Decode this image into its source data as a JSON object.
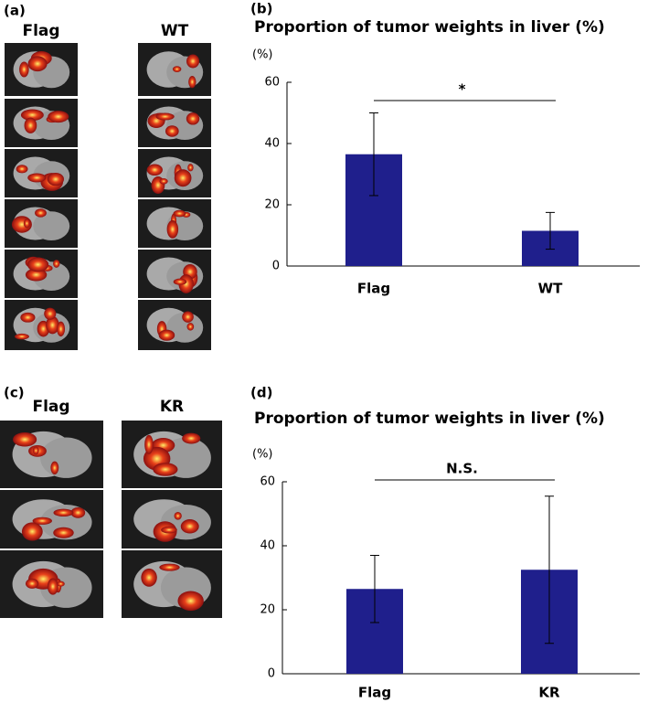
{
  "image_panels": [
    {
      "label": "(a)",
      "columns": [
        "Flag",
        "WT"
      ]
    },
    {
      "label": "(c)",
      "columns": [
        "Flag",
        "KR"
      ]
    }
  ],
  "chart_data": [
    {
      "type": "bar",
      "panel_label": "(b)",
      "title": "Proportion of tumor weights in liver (%)",
      "ylabel": "(%)",
      "categories": [
        "Flag",
        "WT"
      ],
      "values": [
        36.5,
        11.5
      ],
      "errors": [
        13.5,
        6
      ],
      "color": "#1f1f8c",
      "ylim": [
        0,
        60
      ],
      "yticks": [
        0,
        20,
        40,
        60
      ],
      "annotation": "*"
    },
    {
      "type": "bar",
      "panel_label": "(d)",
      "title": "Proportion of tumor weights in liver (%)",
      "ylabel": "(%)",
      "categories": [
        "Flag",
        "KR"
      ],
      "values": [
        26.5,
        32.5
      ],
      "errors": [
        10.5,
        23
      ],
      "color": "#1f1f8c",
      "ylim": [
        0,
        60
      ],
      "yticks": [
        0,
        20,
        40,
        60
      ],
      "annotation": "N.S."
    }
  ]
}
